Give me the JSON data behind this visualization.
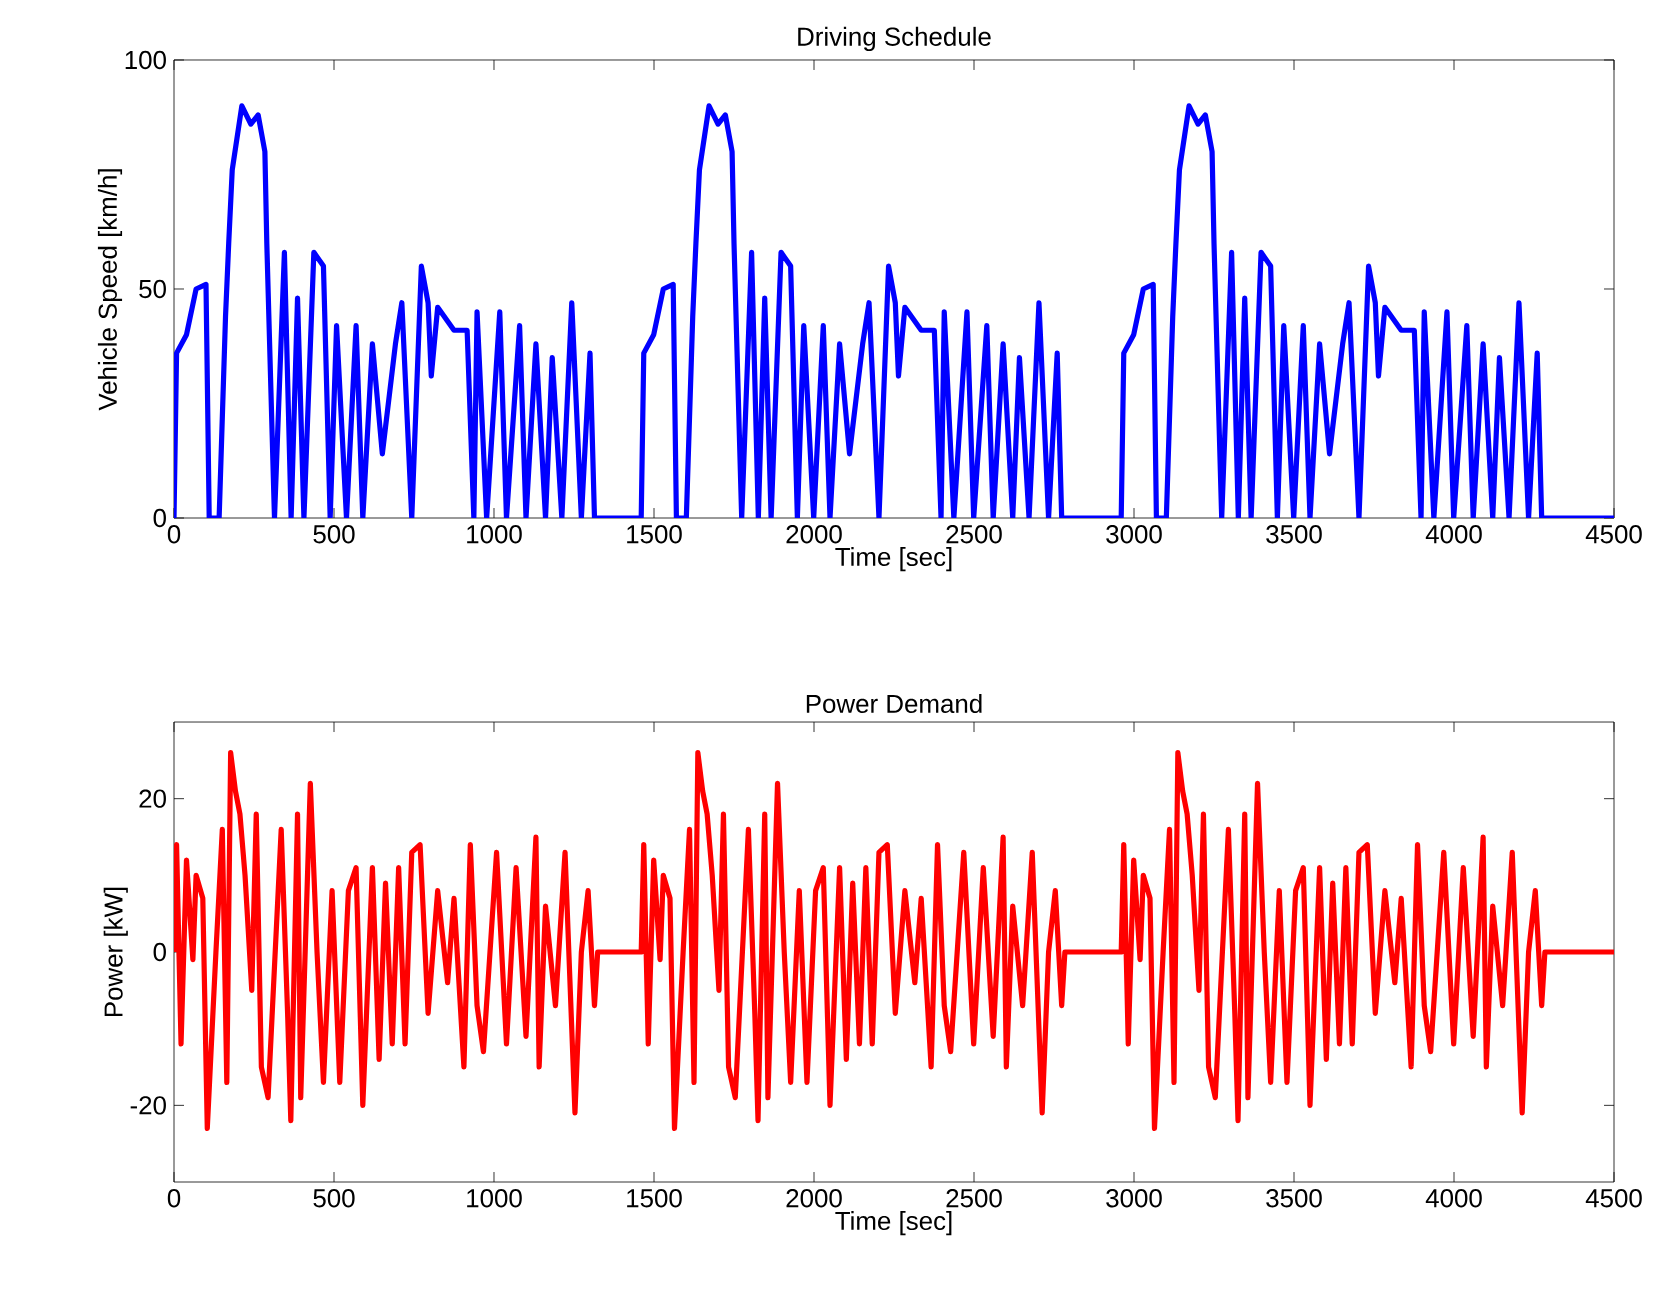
{
  "chart_data": [
    {
      "type": "line",
      "title": "Driving Schedule",
      "xlabel": "Time [sec]",
      "ylabel": "Vehicle Speed [km/h]",
      "xlim": [
        0,
        4500
      ],
      "ylim": [
        0,
        100
      ],
      "xticks": [
        0,
        500,
        1000,
        1500,
        2000,
        2500,
        3000,
        3500,
        4000,
        4500
      ],
      "yticks": [
        0,
        50,
        100
      ],
      "series": [
        {
          "color": "#0000ff",
          "x": [
            0,
            8,
            39,
            69,
            100,
            110,
            141,
            161,
            171,
            182,
            212,
            240,
            263,
            284,
            290,
            314,
            345,
            366,
            386,
            406,
            437,
            467,
            488,
            508,
            539,
            569,
            590,
            620,
            651,
            692,
            712,
            743,
            773,
            794,
            804,
            824,
            875,
            916,
            937,
            947,
            977,
            1018,
            1039,
            1080,
            1100,
            1131,
            1161,
            1182,
            1212,
            1243,
            1273,
            1300,
            1314,
            1460,
            1468,
            1499,
            1529,
            1560,
            1570,
            1601,
            1621,
            1631,
            1642,
            1672,
            1700,
            1723,
            1744,
            1750,
            1774,
            1805,
            1826,
            1846,
            1866,
            1897,
            1927,
            1948,
            1968,
            1999,
            2029,
            2050,
            2080,
            2111,
            2152,
            2172,
            2203,
            2233,
            2254,
            2264,
            2284,
            2335,
            2376,
            2397,
            2407,
            2437,
            2478,
            2499,
            2540,
            2560,
            2591,
            2621,
            2642,
            2672,
            2703,
            2733,
            2760,
            2774,
            2960,
            2968,
            2999,
            3029,
            3060,
            3070,
            3101,
            3121,
            3131,
            3142,
            3172,
            3200,
            3223,
            3244,
            3250,
            3274,
            3305,
            3326,
            3346,
            3366,
            3397,
            3427,
            3448,
            3468,
            3499,
            3529,
            3550,
            3580,
            3611,
            3652,
            3672,
            3703,
            3733,
            3754,
            3764,
            3784,
            3835,
            3876,
            3897,
            3907,
            3937,
            3978,
            3999,
            4040,
            4060,
            4091,
            4121,
            4142,
            4172,
            4203,
            4233,
            4260,
            4274,
            4500
          ],
          "values": [
            0,
            36,
            40,
            50,
            51,
            0,
            0,
            44,
            60,
            76,
            90,
            86,
            88,
            80,
            60,
            0,
            58,
            0,
            48,
            0,
            58,
            55,
            0,
            42,
            0,
            42,
            0,
            38,
            14,
            38,
            47,
            0,
            55,
            47,
            31,
            46,
            41,
            41,
            0,
            45,
            0,
            45,
            0,
            42,
            0,
            38,
            0,
            35,
            0,
            47,
            0,
            36,
            0,
            0,
            36,
            40,
            50,
            51,
            0,
            0,
            44,
            60,
            76,
            90,
            86,
            88,
            80,
            60,
            0,
            58,
            0,
            48,
            0,
            58,
            55,
            0,
            42,
            0,
            42,
            0,
            38,
            14,
            38,
            47,
            0,
            55,
            47,
            31,
            46,
            41,
            41,
            0,
            45,
            0,
            45,
            0,
            42,
            0,
            38,
            0,
            35,
            0,
            47,
            0,
            36,
            0,
            0,
            36,
            40,
            50,
            51,
            0,
            0,
            44,
            60,
            76,
            90,
            86,
            88,
            80,
            60,
            0,
            58,
            0,
            48,
            0,
            58,
            55,
            0,
            42,
            0,
            42,
            0,
            38,
            14,
            38,
            47,
            0,
            55,
            47,
            31,
            46,
            41,
            41,
            0,
            45,
            0,
            45,
            0,
            42,
            0,
            38,
            0,
            35,
            0,
            47,
            0,
            36,
            0,
            0
          ]
        }
      ]
    },
    {
      "type": "line",
      "title": "Power Demand",
      "xlabel": "Time [sec]",
      "ylabel": "Power [kW]",
      "xlim": [
        0,
        4500
      ],
      "ylim": [
        -30,
        30
      ],
      "xticks": [
        0,
        500,
        1000,
        1500,
        2000,
        2500,
        3000,
        3500,
        4000,
        4500
      ],
      "yticks": [
        -20,
        0,
        20
      ],
      "series": [
        {
          "color": "#ff0000",
          "x": [
            0,
            8,
            22,
            39,
            59,
            69,
            90,
            104,
            131,
            151,
            165,
            177,
            192,
            206,
            222,
            243,
            257,
            273,
            294,
            335,
            355,
            365,
            386,
            396,
            426,
            447,
            467,
            494,
            518,
            545,
            569,
            590,
            620,
            641,
            661,
            682,
            702,
            722,
            743,
            769,
            794,
            824,
            855,
            875,
            906,
            926,
            947,
            967,
            1008,
            1039,
            1069,
            1100,
            1131,
            1141,
            1161,
            1192,
            1222,
            1253,
            1273,
            1294,
            1314,
            1324,
            1460,
            1468,
            1482,
            1499,
            1519,
            1529,
            1550,
            1564,
            1591,
            1611,
            1625,
            1637,
            1652,
            1666,
            1682,
            1703,
            1717,
            1733,
            1754,
            1795,
            1815,
            1825,
            1846,
            1856,
            1886,
            1907,
            1927,
            1954,
            1978,
            2005,
            2029,
            2050,
            2080,
            2101,
            2121,
            2142,
            2162,
            2182,
            2203,
            2229,
            2254,
            2284,
            2315,
            2335,
            2366,
            2386,
            2407,
            2427,
            2468,
            2499,
            2529,
            2560,
            2591,
            2601,
            2621,
            2652,
            2682,
            2713,
            2733,
            2754,
            2774,
            2784,
            2960,
            2968,
            2982,
            2999,
            3019,
            3029,
            3050,
            3064,
            3091,
            3111,
            3125,
            3137,
            3152,
            3166,
            3182,
            3203,
            3217,
            3233,
            3254,
            3295,
            3315,
            3325,
            3346,
            3356,
            3386,
            3407,
            3427,
            3454,
            3478,
            3505,
            3529,
            3550,
            3580,
            3601,
            3621,
            3642,
            3662,
            3682,
            3703,
            3729,
            3754,
            3784,
            3815,
            3835,
            3866,
            3886,
            3907,
            3927,
            3968,
            3999,
            4029,
            4060,
            4091,
            4101,
            4121,
            4152,
            4182,
            4213,
            4233,
            4254,
            4274,
            4284,
            4500
          ],
          "values": [
            0,
            14,
            -12,
            12,
            -1,
            10,
            7,
            -23,
            0,
            16,
            -17,
            26,
            21,
            18,
            10,
            -5,
            18,
            -15,
            -19,
            16,
            -8,
            -22,
            18,
            -19,
            22,
            0,
            -17,
            8,
            -17,
            8,
            11,
            -20,
            11,
            -14,
            9,
            -12,
            11,
            -12,
            13,
            14,
            -8,
            8,
            -4,
            7,
            -15,
            14,
            -7,
            -13,
            13,
            -12,
            11,
            -11,
            15,
            -15,
            6,
            -7,
            13,
            -21,
            0,
            8,
            -7,
            0,
            0,
            14,
            -12,
            12,
            -1,
            10,
            7,
            -23,
            0,
            16,
            -17,
            26,
            21,
            18,
            10,
            -5,
            18,
            -15,
            -19,
            16,
            -8,
            -22,
            18,
            -19,
            22,
            0,
            -17,
            8,
            -17,
            8,
            11,
            -20,
            11,
            -14,
            9,
            -12,
            11,
            -12,
            13,
            14,
            -8,
            8,
            -4,
            7,
            -15,
            14,
            -7,
            -13,
            13,
            -12,
            11,
            -11,
            15,
            -15,
            6,
            -7,
            13,
            -21,
            0,
            8,
            -7,
            0,
            0,
            14,
            -12,
            12,
            -1,
            10,
            7,
            -23,
            0,
            16,
            -17,
            26,
            21,
            18,
            10,
            -5,
            18,
            -15,
            -19,
            16,
            -8,
            -22,
            18,
            -19,
            22,
            0,
            -17,
            8,
            -17,
            8,
            11,
            -20,
            11,
            -14,
            9,
            -12,
            11,
            -12,
            13,
            14,
            -8,
            8,
            -4,
            7,
            -15,
            14,
            -7,
            -13,
            13,
            -12,
            11,
            -11,
            15,
            -15,
            6,
            -7,
            13,
            -21,
            0,
            8,
            -7,
            0,
            0
          ]
        }
      ]
    }
  ]
}
